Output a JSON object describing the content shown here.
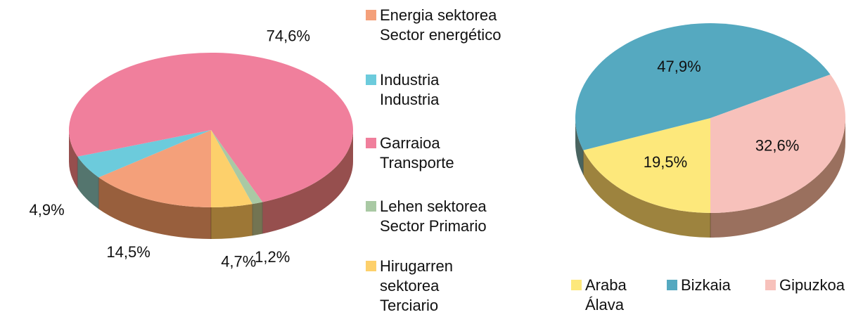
{
  "chart_data": [
    {
      "type": "pie3d",
      "categories": [
        "Energia sektorea\nSector energético",
        "Industria\nIndustria",
        "Garraioa\nTransporte",
        "Lehen sektorea\nSector Primario",
        "Hirugarren\nsektorea\nTerciario"
      ],
      "values": [
        14.5,
        4.9,
        74.6,
        1.2,
        4.7
      ],
      "value_labels": [
        "14,5%",
        "4,9%",
        "74,6%",
        "1,2%",
        "4,7%"
      ],
      "colors": [
        "#f4a07a",
        "#6ccbdc",
        "#f07f9c",
        "#a9c9a4",
        "#fdd06b"
      ],
      "legend": "right"
    },
    {
      "type": "pie3d",
      "categories": [
        "Araba\nÁlava",
        "Bizkaia",
        "Gipuzkoa"
      ],
      "values": [
        19.5,
        47.9,
        32.6
      ],
      "value_labels": [
        "19,5%",
        "47,9%",
        "32,6%"
      ],
      "colors": [
        "#fde87b",
        "#55a9c0",
        "#f7c1bb"
      ],
      "legend": "bottom"
    }
  ]
}
